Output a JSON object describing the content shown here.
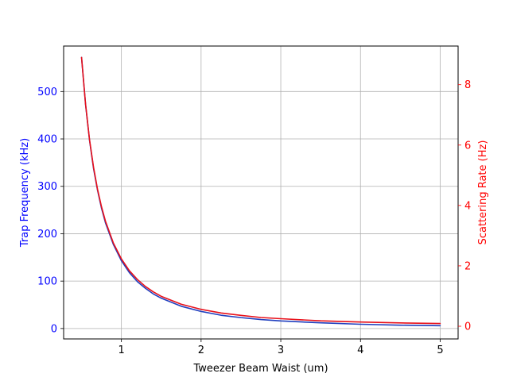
{
  "chart_data": {
    "type": "line",
    "xlabel": "Tweezer Beam Waist (um)",
    "ylabel_left": "Trap Frequency (kHz)",
    "ylabel_right": "Scattering Rate (Hz)",
    "xlim": [
      0.275,
      5.225
    ],
    "ylim_left": [
      -22.0,
      596.0
    ],
    "ylim_right": [
      -0.42,
      9.28
    ],
    "x_ticks": [
      1,
      2,
      3,
      4,
      5
    ],
    "y_left_ticks": [
      0,
      100,
      200,
      300,
      400,
      500
    ],
    "y_right_ticks": [
      0,
      2,
      4,
      6,
      8
    ],
    "grid": true,
    "colors": {
      "left_axis": "#0000ff",
      "right_axis": "#ff0000",
      "trap_frequency_line": "#1f3fbf",
      "scattering_rate_line": "#e8101a"
    },
    "series": [
      {
        "axis": "left",
        "x": [
          0.5,
          0.55,
          0.6,
          0.65,
          0.7,
          0.75,
          0.8,
          0.9,
          1.0,
          1.1,
          1.2,
          1.3,
          1.4,
          1.5,
          1.75,
          2.0,
          2.25,
          2.5,
          2.75,
          3.0,
          3.5,
          4.0,
          4.5,
          5.0
        ],
        "values": [
          572,
          473,
          397,
          338,
          292,
          254,
          223,
          177,
          143,
          118,
          99,
          85,
          73,
          64,
          47,
          36,
          28,
          23,
          19,
          16,
          12,
          9,
          7,
          6
        ]
      },
      {
        "axis": "right",
        "x": [
          0.5,
          0.55,
          0.6,
          0.65,
          0.7,
          0.75,
          0.8,
          0.9,
          1.0,
          1.1,
          1.2,
          1.3,
          1.4,
          1.5,
          1.75,
          2.0,
          2.25,
          2.5,
          2.75,
          3.0,
          3.5,
          4.0,
          4.5,
          5.0
        ],
        "values": [
          8.9,
          7.36,
          6.18,
          5.27,
          4.54,
          3.96,
          3.48,
          2.75,
          2.23,
          1.84,
          1.55,
          1.32,
          1.14,
          0.99,
          0.73,
          0.56,
          0.44,
          0.36,
          0.29,
          0.25,
          0.18,
          0.14,
          0.11,
          0.09
        ]
      }
    ]
  }
}
